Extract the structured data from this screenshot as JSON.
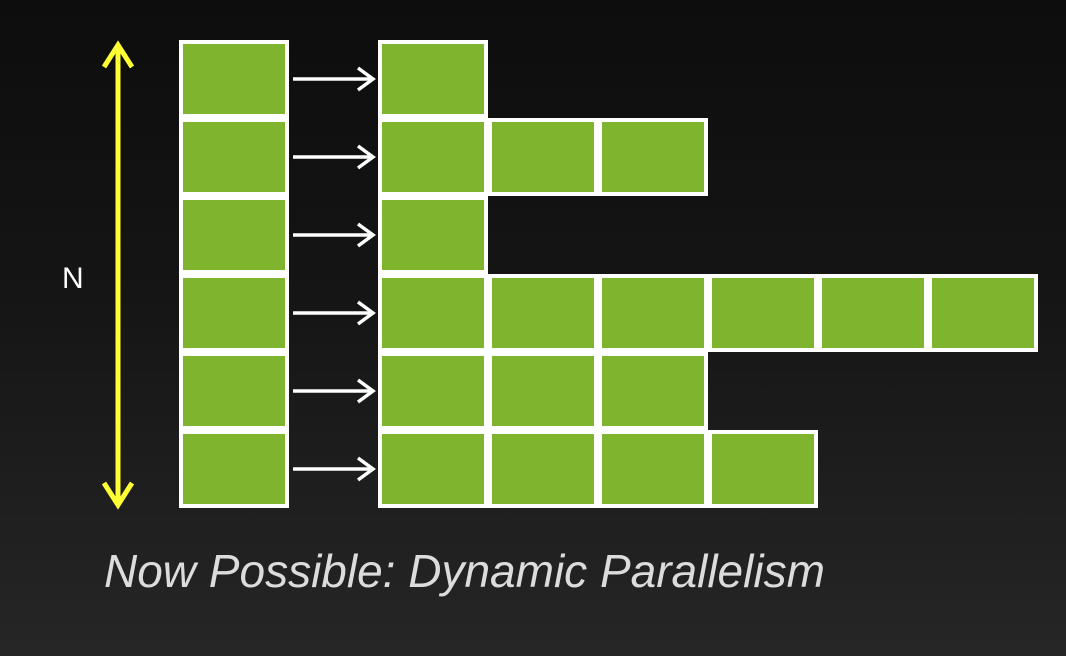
{
  "diagram": {
    "axis_label": "N",
    "caption": "Now Possible: Dynamic Parallelism",
    "rows": [
      {
        "launched_cells": 1
      },
      {
        "launched_cells": 3
      },
      {
        "launched_cells": 1
      },
      {
        "launched_cells": 6
      },
      {
        "launched_cells": 3
      },
      {
        "launched_cells": 4
      }
    ],
    "colors": {
      "cell_fill": "#7fb42f",
      "cell_border": "#ffffff",
      "arrow": "#ffffff",
      "axis_arrow": "#ffff33",
      "caption_text": "#dcdcdc",
      "label_text": "#ffffff"
    }
  }
}
